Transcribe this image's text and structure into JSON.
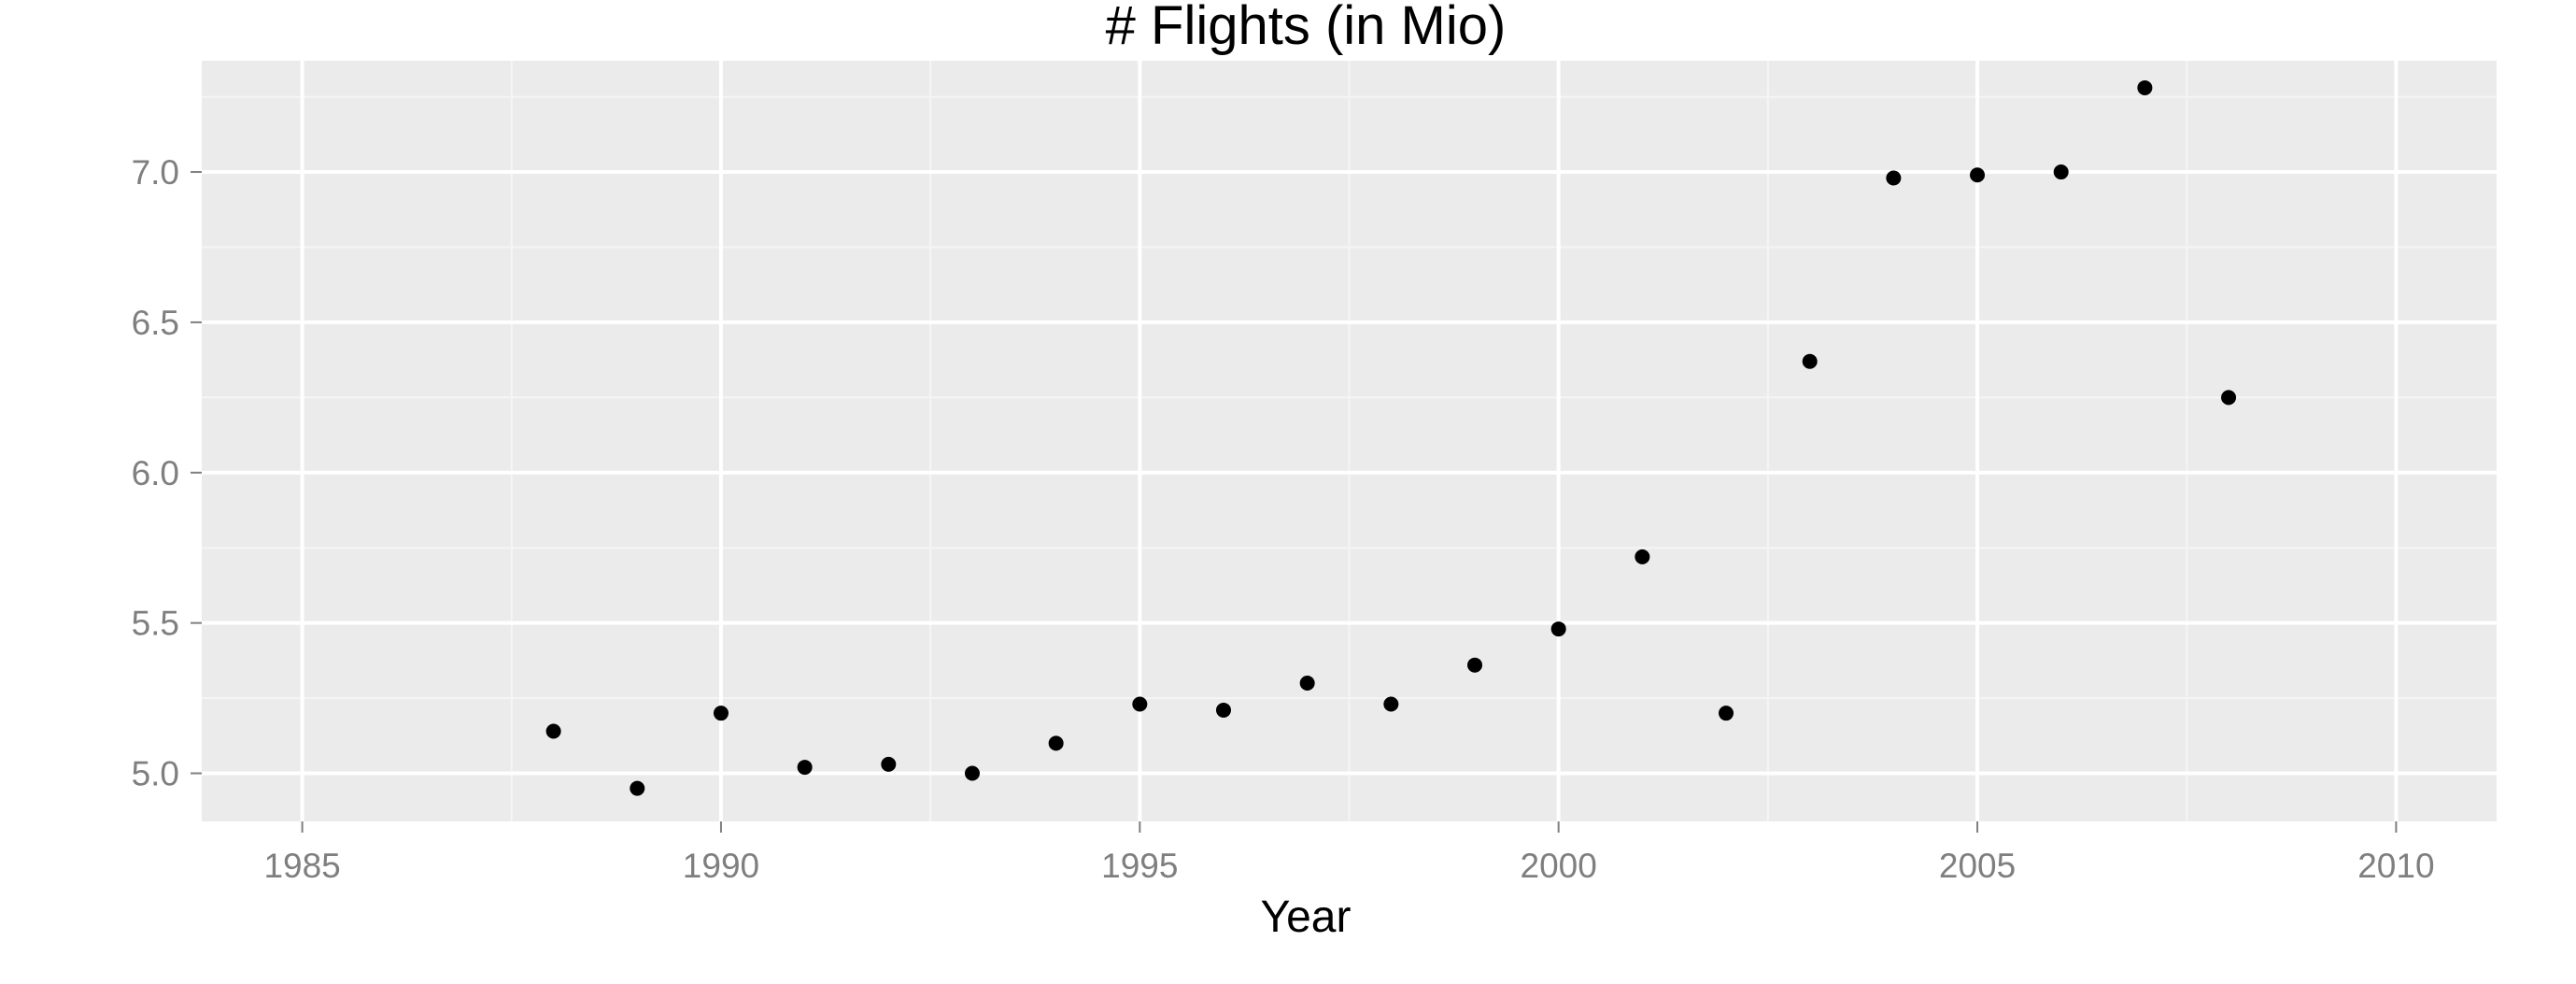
{
  "chart_data": {
    "type": "scatter",
    "title": "# Flights (in Mio)",
    "xlabel": "Year",
    "ylabel": "",
    "xlim": [
      1983.8,
      2011.2
    ],
    "ylim": [
      4.84,
      7.37
    ],
    "x_ticks": [
      1985,
      1990,
      1995,
      2000,
      2005,
      2010
    ],
    "x_tick_labels": [
      "1985",
      "1990",
      "1995",
      "2000",
      "2005",
      "2010"
    ],
    "y_ticks": [
      5.0,
      5.5,
      6.0,
      6.5,
      7.0
    ],
    "y_tick_labels": [
      "5.0",
      "5.5",
      "6.0",
      "6.5",
      "7.0"
    ],
    "grid": true,
    "legend": "none",
    "colors": {
      "panel": "#EBEBEB",
      "grid_major": "#FFFFFF",
      "grid_minor": "#F5F5F5",
      "point": "#000000",
      "tick_label": "#7F7F7F"
    },
    "points": [
      {
        "x": 1988,
        "y": 5.14
      },
      {
        "x": 1989,
        "y": 4.95
      },
      {
        "x": 1990,
        "y": 5.2
      },
      {
        "x": 1991,
        "y": 5.02
      },
      {
        "x": 1992,
        "y": 5.03
      },
      {
        "x": 1993,
        "y": 5.0
      },
      {
        "x": 1994,
        "y": 5.1
      },
      {
        "x": 1995,
        "y": 5.23
      },
      {
        "x": 1996,
        "y": 5.21
      },
      {
        "x": 1997,
        "y": 5.3
      },
      {
        "x": 1998,
        "y": 5.23
      },
      {
        "x": 1999,
        "y": 5.36
      },
      {
        "x": 2000,
        "y": 5.48
      },
      {
        "x": 2001,
        "y": 5.72
      },
      {
        "x": 2002,
        "y": 5.2
      },
      {
        "x": 2003,
        "y": 6.37
      },
      {
        "x": 2004,
        "y": 6.98
      },
      {
        "x": 2005,
        "y": 6.99
      },
      {
        "x": 2006,
        "y": 7.0
      },
      {
        "x": 2007,
        "y": 7.28
      },
      {
        "x": 2008,
        "y": 6.25
      }
    ]
  }
}
